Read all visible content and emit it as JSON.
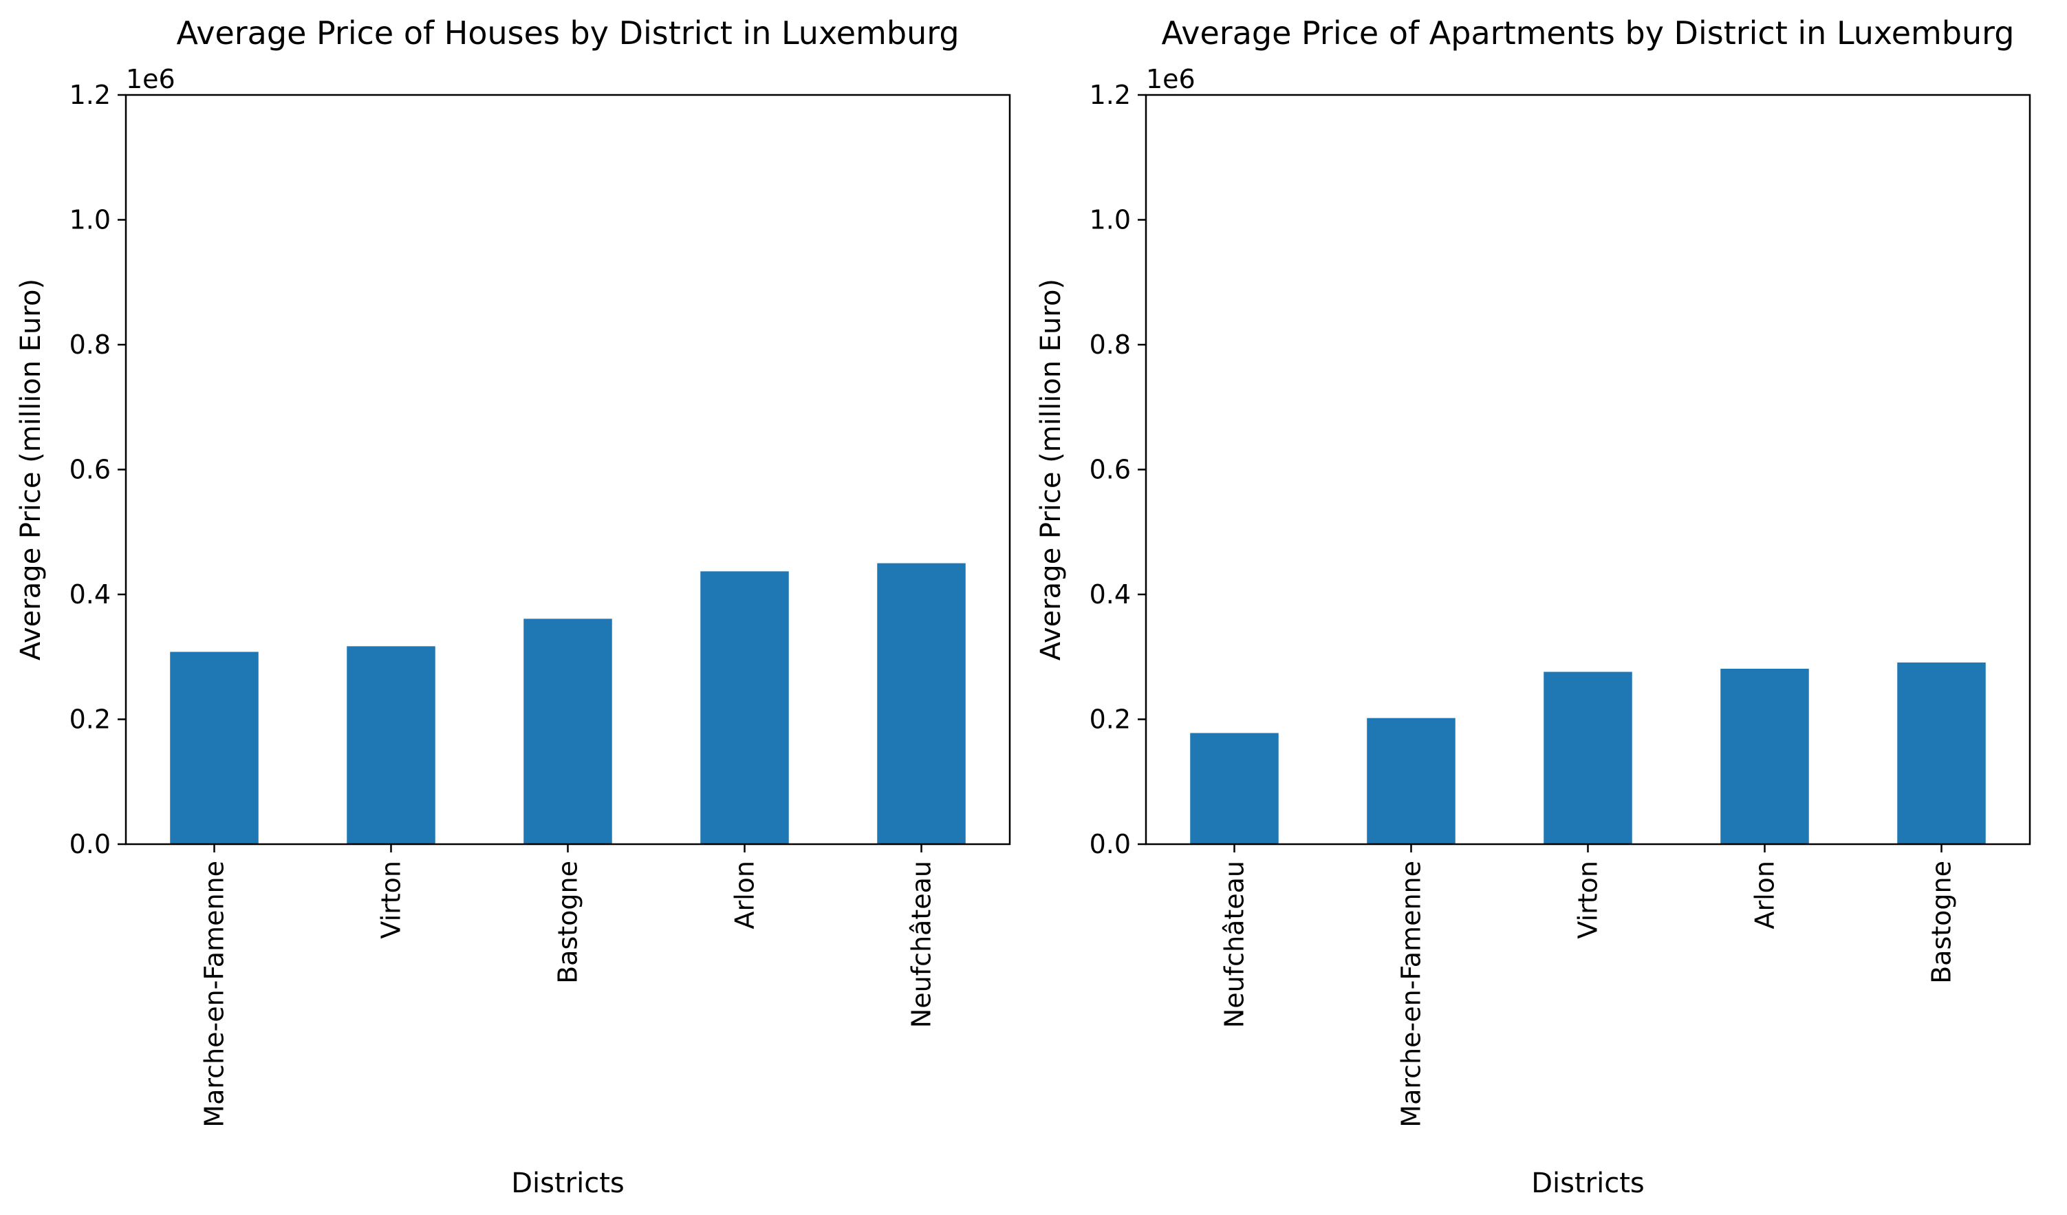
{
  "chart_data": [
    {
      "type": "bar",
      "title": "Average Price of Houses by District in Luxemburg",
      "xlabel": "Districts",
      "ylabel": "Average Price (million Euro)",
      "y_offset_label": "1e6",
      "categories": [
        "Marche-en-Famenne",
        "Virton",
        "Bastogne",
        "Arlon",
        "Neufchâteau"
      ],
      "values": [
        308000,
        317000,
        361000,
        437000,
        450000
      ],
      "ylim": [
        0,
        1200000
      ],
      "yticks": [
        0,
        200000,
        400000,
        600000,
        800000,
        1000000,
        1200000
      ],
      "ytick_labels": [
        "0.0",
        "0.2",
        "0.4",
        "0.6",
        "0.8",
        "1.0",
        "1.2"
      ],
      "grid": false,
      "bar_color": "#1f77b4"
    },
    {
      "type": "bar",
      "title": "Average Price of Apartments by District in Luxemburg",
      "xlabel": "Districts",
      "ylabel": "Average Price (million Euro)",
      "y_offset_label": "1e6",
      "categories": [
        "Neufchâteau",
        "Marche-en-Famenne",
        "Virton",
        "Arlon",
        "Bastogne"
      ],
      "values": [
        178000,
        202000,
        276000,
        281000,
        291000
      ],
      "ylim": [
        0,
        1200000
      ],
      "yticks": [
        0,
        200000,
        400000,
        600000,
        800000,
        1000000,
        1200000
      ],
      "ytick_labels": [
        "0.0",
        "0.2",
        "0.4",
        "0.6",
        "0.8",
        "1.0",
        "1.2"
      ],
      "grid": false,
      "bar_color": "#1f77b4"
    }
  ]
}
